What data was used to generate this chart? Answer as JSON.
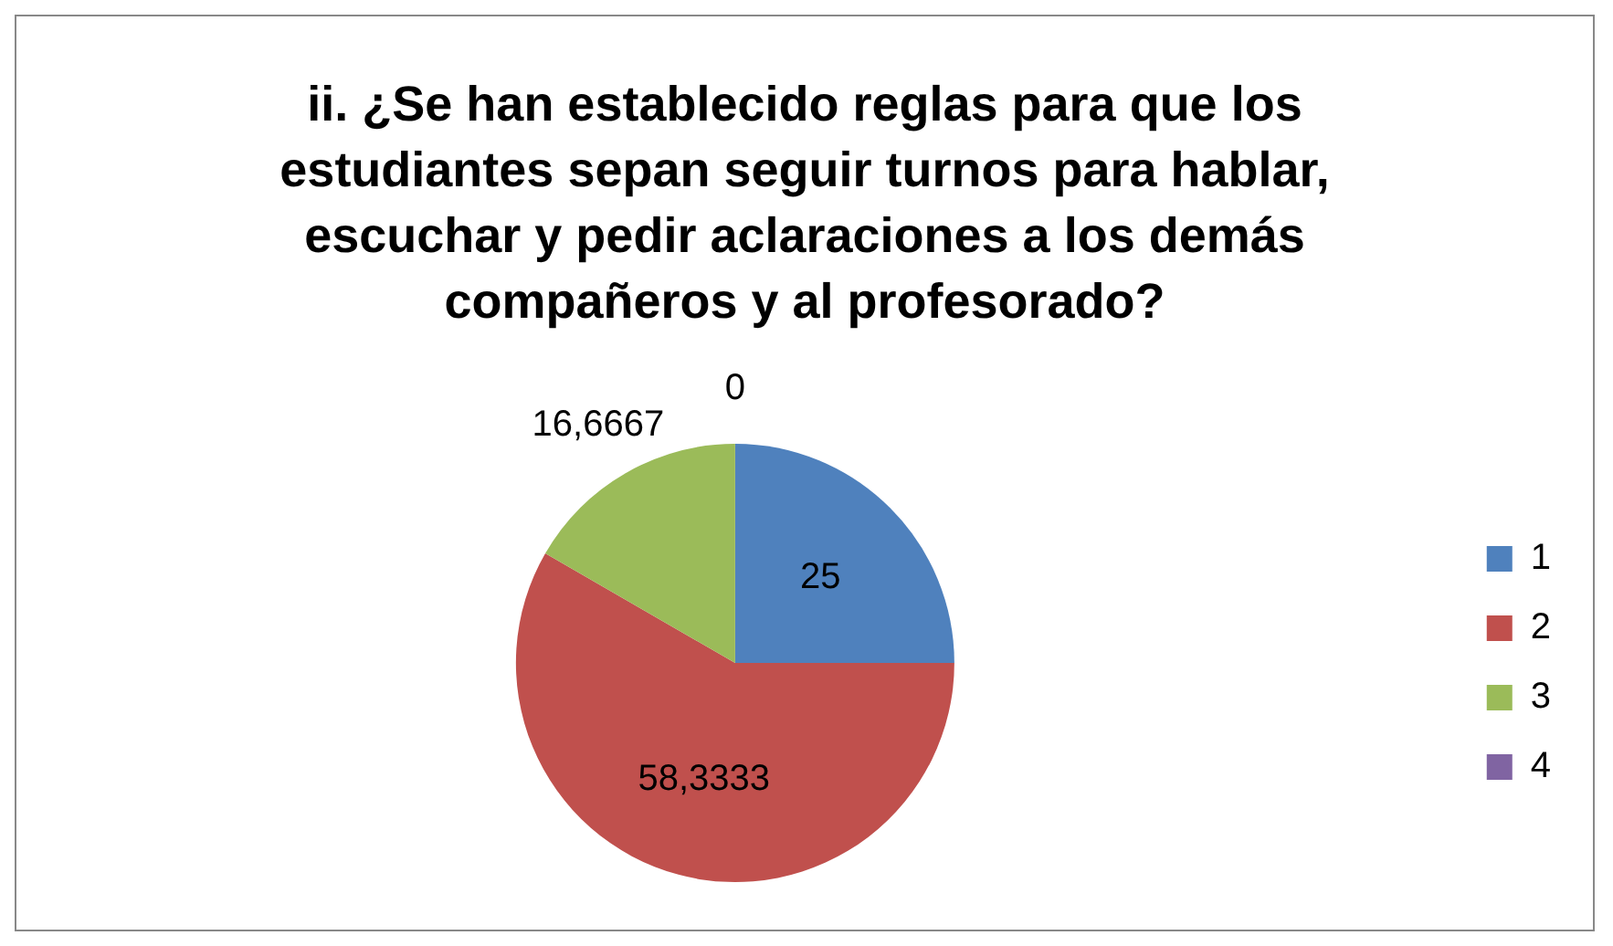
{
  "chart_data": {
    "type": "pie",
    "title": "ii. ¿Se han establecido reglas para que los estudiantes sepan seguir turnos para hablar, escuchar y pedir aclaraciones a los demás compañeros y al profesorado?",
    "categories": [
      "1",
      "2",
      "3",
      "4"
    ],
    "values": [
      25,
      58.3333,
      16.6667,
      0
    ],
    "value_labels": [
      "25",
      "58,3333",
      "16,6667",
      "0"
    ],
    "colors": [
      "#4f81bd",
      "#c0504d",
      "#9bbb59",
      "#8064a2"
    ],
    "legend": "right"
  }
}
